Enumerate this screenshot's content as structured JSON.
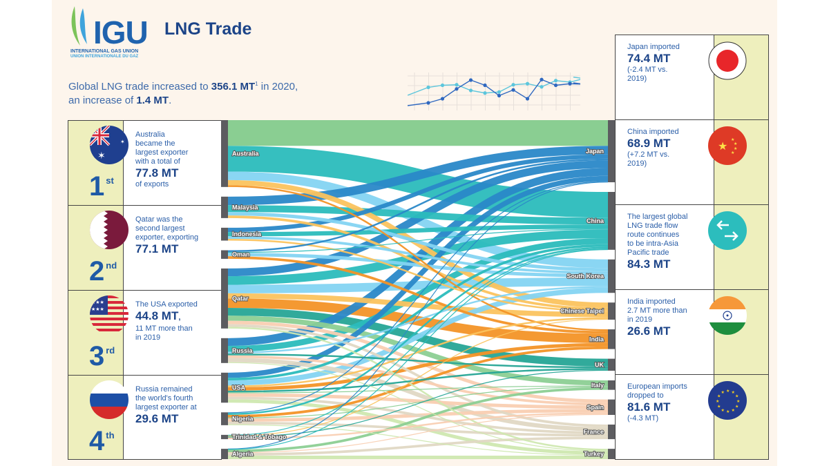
{
  "header": {
    "logo_text": "IGU",
    "logo_sub1": "INTERNATIONAL GAS UNION",
    "logo_sub2": "UNION INTERNATIONALE DU GAZ",
    "title": "LNG Trade",
    "headline_pre": "Global LNG trade increased to ",
    "headline_value": "356.1 MT",
    "headline_footnote": "1",
    "headline_mid": " in 2020,",
    "headline_line2_pre": "an increase of ",
    "headline_increase": "1.4 MT",
    "headline_end": "."
  },
  "decor_chart": {
    "series": [
      {
        "color": "#5cc6dc",
        "values": [
          2.1,
          2.3,
          2.35,
          1.8,
          1.55,
          1.65,
          2.35,
          2.45,
          2.15,
          2.75,
          2.6,
          2.95
        ]
      },
      {
        "color": "#2f68c0",
        "values": [
          0.6,
          1.0,
          1.95,
          2.8,
          2.3,
          1.3,
          1.85,
          1.0,
          2.85,
          2.3,
          2.45,
          2.4
        ]
      }
    ]
  },
  "exporters": [
    {
      "rank": "1",
      "suffix": "st",
      "flag": "australia-flag",
      "lines": [
        "Australia",
        "became the",
        "largest exporter",
        "with a total of"
      ],
      "value": "77.8 MT",
      "after": [
        "of exports"
      ]
    },
    {
      "rank": "2",
      "suffix": "nd",
      "flag": "qatar-flag",
      "lines": [
        "Qatar was the",
        "second largest",
        "exporter, exporting"
      ],
      "value": "77.1 MT",
      "after": []
    },
    {
      "rank": "3",
      "suffix": "rd",
      "flag": "usa-flag",
      "lines": [
        "The USA exported"
      ],
      "value": "44.8 MT",
      "value_suffix": ",",
      "after": [
        "11 MT more than",
        "in 2019"
      ]
    },
    {
      "rank": "4",
      "suffix": "th",
      "flag": "russia-flag",
      "lines": [
        "Russia remained",
        "the world's fourth",
        "largest exporter at"
      ],
      "value": "29.6 MT",
      "after": []
    }
  ],
  "importers": [
    {
      "flag": "japan-flag",
      "lines": [
        "Japan imported"
      ],
      "value": "74.4 MT",
      "after": [
        "(-2.4 MT vs.",
        "2019)"
      ]
    },
    {
      "flag": "china-flag",
      "lines": [
        "China imported"
      ],
      "value": "68.9 MT",
      "after": [
        "(+7.2 MT vs.",
        "2019)"
      ]
    },
    {
      "flag": "arrows-icon",
      "lines": [
        "The largest global",
        "LNG trade flow",
        "route continues",
        "to be intra-Asia",
        "Pacific trade"
      ],
      "value": "84.3 MT",
      "after": []
    },
    {
      "flag": "india-flag",
      "lines": [
        "India imported",
        "2.7 MT more than",
        "in 2019"
      ],
      "value": "26.6 MT",
      "after": []
    },
    {
      "flag": "eu-flag",
      "lines": [
        "European imports",
        "dropped to"
      ],
      "value": "81.6 MT",
      "after": [
        "(-4.3 MT)"
      ]
    }
  ],
  "sankey": {
    "sources": [
      "Australia",
      "Malaysia",
      "Indonesia",
      "Oman",
      "Qatar",
      "Russia",
      "USA",
      "Nigeria",
      "Trinidad & Tobago",
      "Algeria"
    ],
    "targets": [
      "Japan",
      "China",
      "South Korea",
      "Chinese Taipei",
      "India",
      "UK",
      "Italy",
      "Spain",
      "France",
      "Turkey"
    ],
    "target_colors": {
      "Japan": "#2a88c8",
      "China": "#2bbcbc",
      "South Korea": "#84d4f2",
      "Chinese Taipei": "#fbc35e",
      "India": "#f39427",
      "UK": "#26a596",
      "Italy": "#8ccf94",
      "Spain": "#f9cfb2",
      "France": "#e0d8c4",
      "Turkey": "#cfe8b0"
    },
    "top_band_color": "#84cb8c",
    "flows": [
      [
        "Australia",
        "Japan",
        30,
        "top"
      ],
      [
        "Australia",
        "China",
        30
      ],
      [
        "Australia",
        "South Korea",
        10
      ],
      [
        "Australia",
        "Chinese Taipei",
        6
      ],
      [
        "Australia",
        "India",
        2
      ],
      [
        "Malaysia",
        "Japan",
        10
      ],
      [
        "Malaysia",
        "China",
        8
      ],
      [
        "Malaysia",
        "South Korea",
        4
      ],
      [
        "Malaysia",
        "Chinese Taipei",
        3
      ],
      [
        "Indonesia",
        "Japan",
        5
      ],
      [
        "Indonesia",
        "China",
        5
      ],
      [
        "Indonesia",
        "South Korea",
        3
      ],
      [
        "Indonesia",
        "Chinese Taipei",
        2
      ],
      [
        "Oman",
        "Japan",
        2
      ],
      [
        "Oman",
        "China",
        1
      ],
      [
        "Oman",
        "South Korea",
        4
      ],
      [
        "Oman",
        "India",
        3
      ],
      [
        "Qatar",
        "Japan",
        9
      ],
      [
        "Qatar",
        "China",
        10
      ],
      [
        "Qatar",
        "South Korea",
        10
      ],
      [
        "Qatar",
        "Chinese Taipei",
        6
      ],
      [
        "Qatar",
        "India",
        11
      ],
      [
        "Qatar",
        "UK",
        9
      ],
      [
        "Qatar",
        "Italy",
        6
      ],
      [
        "Qatar",
        "Spain",
        4
      ],
      [
        "Qatar",
        "France",
        3
      ],
      [
        "Qatar",
        "Turkey",
        2
      ],
      [
        "Russia",
        "Japan",
        9
      ],
      [
        "Russia",
        "China",
        7
      ],
      [
        "Russia",
        "South Korea",
        2
      ],
      [
        "Russia",
        "UK",
        2
      ],
      [
        "Russia",
        "Spain",
        3
      ],
      [
        "Russia",
        "France",
        5
      ],
      [
        "Russia",
        "Turkey",
        1
      ],
      [
        "USA",
        "Japan",
        6
      ],
      [
        "USA",
        "China",
        3
      ],
      [
        "USA",
        "South Korea",
        6
      ],
      [
        "USA",
        "Chinese Taipei",
        2
      ],
      [
        "USA",
        "India",
        4
      ],
      [
        "USA",
        "UK",
        2
      ],
      [
        "USA",
        "Italy",
        1
      ],
      [
        "USA",
        "Spain",
        4
      ],
      [
        "USA",
        "France",
        3
      ],
      [
        "USA",
        "Turkey",
        4
      ],
      [
        "Nigeria",
        "Japan",
        1
      ],
      [
        "Nigeria",
        "China",
        2
      ],
      [
        "Nigeria",
        "India",
        3
      ],
      [
        "Nigeria",
        "Italy",
        1
      ],
      [
        "Nigeria",
        "Spain",
        4
      ],
      [
        "Nigeria",
        "France",
        3
      ],
      [
        "Nigeria",
        "Turkey",
        1
      ],
      [
        "Trinidad & Tobago",
        "China",
        1
      ],
      [
        "Trinidad & Tobago",
        "Chinese Taipei",
        1
      ],
      [
        "Trinidad & Tobago",
        "UK",
        1
      ],
      [
        "Trinidad & Tobago",
        "Spain",
        2
      ],
      [
        "Algeria",
        "Japan",
        0.5
      ],
      [
        "Algeria",
        "China",
        0.5
      ],
      [
        "Algeria",
        "Italy",
        3
      ],
      [
        "Algeria",
        "Spain",
        1
      ],
      [
        "Algeria",
        "France",
        3
      ],
      [
        "Algeria",
        "Turkey",
        4
      ]
    ]
  }
}
